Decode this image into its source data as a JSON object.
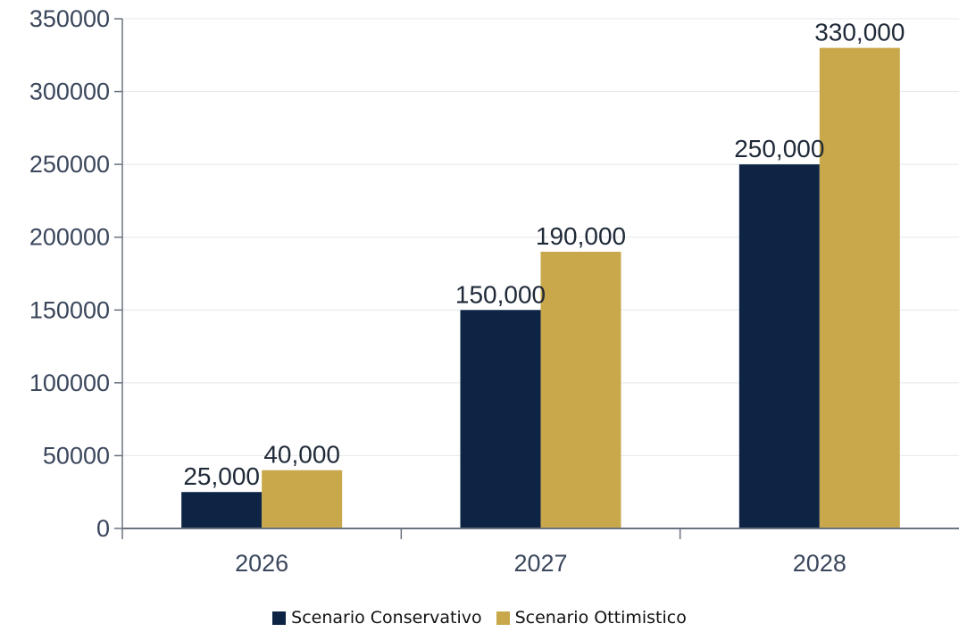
{
  "chart_data": {
    "type": "bar",
    "title": "",
    "xlabel": "",
    "ylabel": "",
    "categories": [
      "2026",
      "2027",
      "2028"
    ],
    "series": [
      {
        "name": "Scenario Conservativo",
        "values": [
          25000,
          150000,
          250000
        ],
        "labels": [
          "25,000",
          "150,000",
          "250,000"
        ],
        "color": "#0d2444"
      },
      {
        "name": "Scenario Ottimistico",
        "values": [
          40000,
          190000,
          330000
        ],
        "labels": [
          "40,000",
          "190,000",
          "330,000"
        ],
        "color": "#c9a84b"
      }
    ],
    "ylim": [
      0,
      350000
    ],
    "yticks": [
      0,
      50000,
      100000,
      150000,
      200000,
      250000,
      300000,
      350000
    ],
    "ytick_labels": [
      "0",
      "50000",
      "100000",
      "150000",
      "200000",
      "250000",
      "300000",
      "350000"
    ],
    "grid": true,
    "legend_position": "bottom-center",
    "axis_color": "#6b7280",
    "grid_color": "#e5e7eb"
  }
}
